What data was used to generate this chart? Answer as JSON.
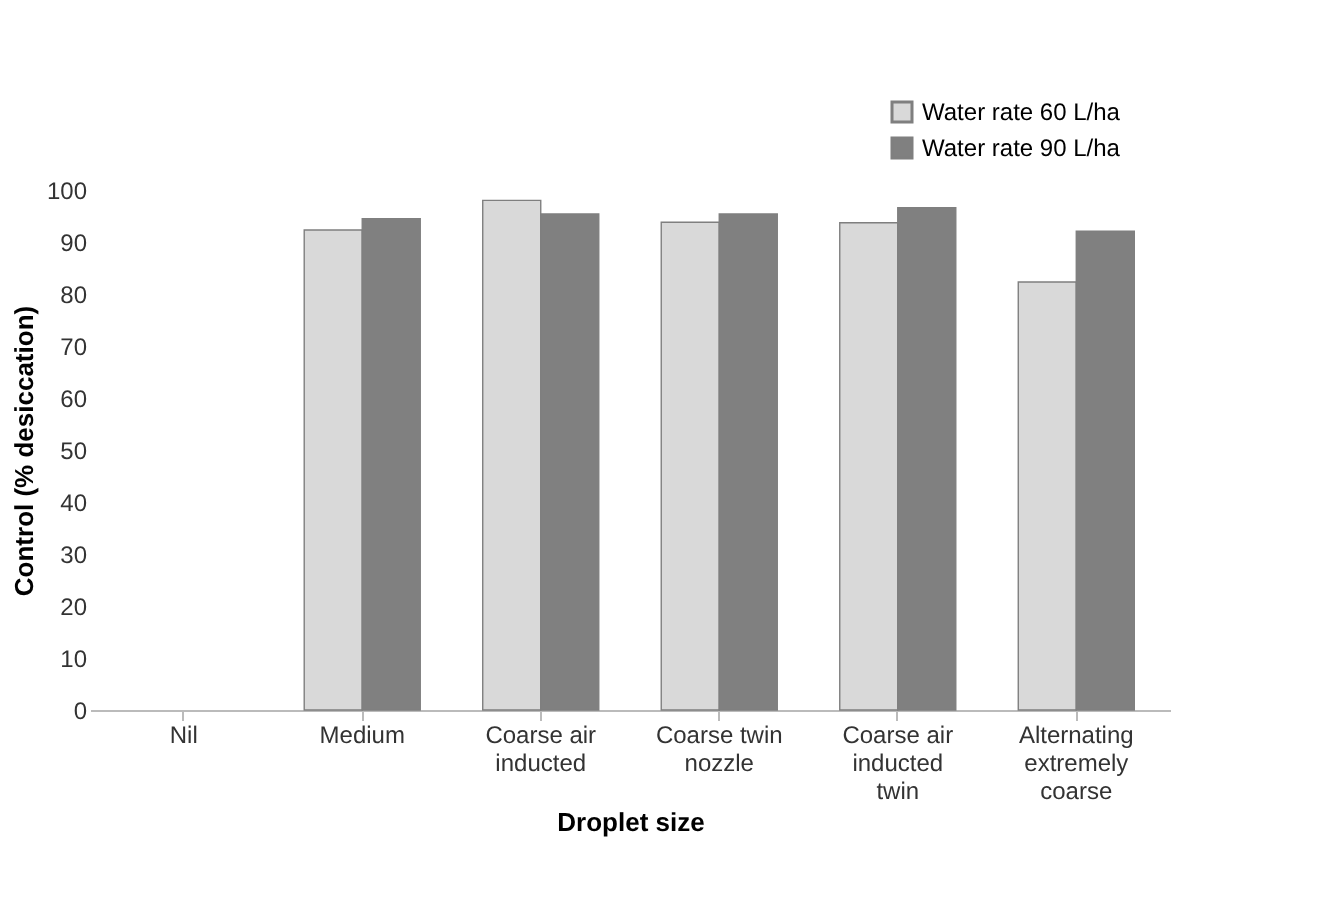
{
  "chart_data": {
    "type": "bar",
    "xlabel": "Droplet size",
    "ylabel": "Control (% desiccation)",
    "categories": [
      "Nil",
      "Medium",
      "Coarse air inducted",
      "Coarse twin nozzle",
      "Coarse air inducted twin",
      "Alternating extremely coarse"
    ],
    "series": [
      {
        "name": "Water rate 60 L/ha",
        "color": "#d9d9d9",
        "values": [
          null,
          92.3,
          98.0,
          93.8,
          93.7,
          82.3
        ]
      },
      {
        "name": "Water rate 90 L/ha",
        "color": "#808080",
        "values": [
          null,
          94.5,
          95.4,
          95.4,
          96.6,
          92.1
        ]
      }
    ],
    "ylim": [
      0,
      100
    ],
    "yticks": [
      0,
      10,
      20,
      30,
      40,
      50,
      60,
      70,
      80,
      90,
      100
    ],
    "grid": false,
    "legend": "top right"
  }
}
